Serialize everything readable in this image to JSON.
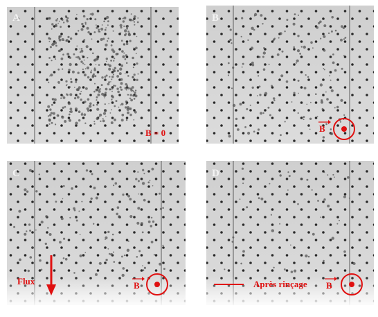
{
  "panels": [
    {
      "label": "A",
      "field": "B = 0"
    },
    {
      "label": "B",
      "field": "B"
    },
    {
      "label": "C",
      "field": "B",
      "flow": "Flux"
    },
    {
      "label": "D",
      "field": "B",
      "note": "Après rinçage"
    }
  ]
}
